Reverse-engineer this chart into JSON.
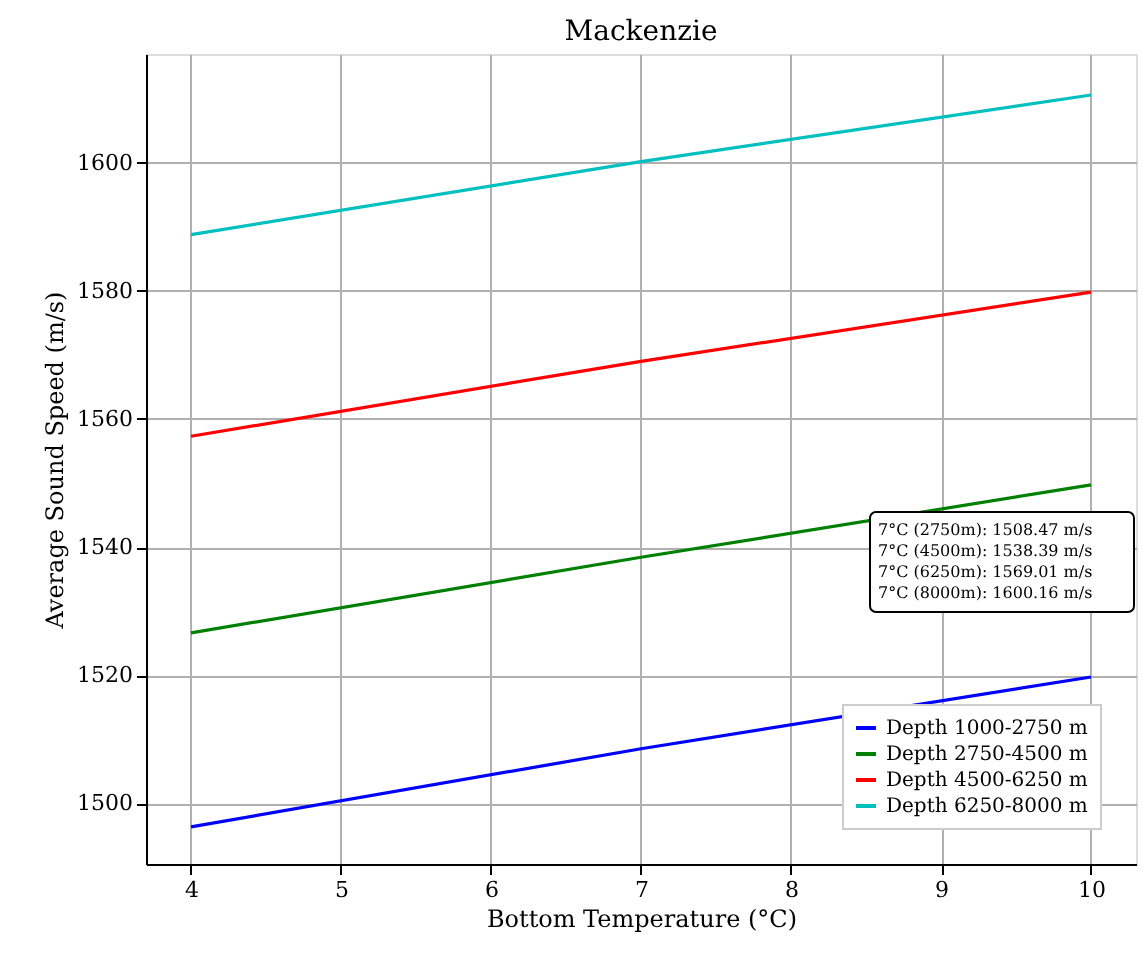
{
  "chart_data": {
    "type": "line",
    "title": "Mackenzie",
    "xlabel": "Bottom Temperature (°C)",
    "ylabel": "Average Sound Speed (m/s)",
    "x": [
      4,
      7,
      10
    ],
    "series": [
      {
        "name": "Depth 1000-2750 m",
        "color": "#0000ff",
        "values": [
          1496.3,
          1508.5,
          1519.7
        ]
      },
      {
        "name": "Depth 2750-4500 m",
        "color": "#008000",
        "values": [
          1526.6,
          1538.4,
          1549.7
        ]
      },
      {
        "name": "Depth 4500-6250 m",
        "color": "#ff0000",
        "values": [
          1557.3,
          1569.0,
          1579.8
        ]
      },
      {
        "name": "Depth 6250-8000 m",
        "color": "#00bfbf",
        "values": [
          1588.8,
          1600.2,
          1610.6
        ]
      }
    ],
    "xlim": [
      3.7,
      10.3
    ],
    "xticks": [
      4,
      5,
      6,
      7,
      8,
      9,
      10
    ],
    "ylim": [
      1490.5,
      1617
    ],
    "yticks": [
      1500,
      1520,
      1540,
      1560,
      1580,
      1600
    ],
    "grid": true,
    "legend": "bottom right",
    "marker": "none",
    "line_style": "solid",
    "annotations": [
      "7°C (2750m): 1508.47 m/s",
      "7°C (4500m): 1538.39 m/s",
      "7°C (6250m): 1569.01 m/s",
      "7°C (8000m): 1600.16 m/s"
    ]
  }
}
